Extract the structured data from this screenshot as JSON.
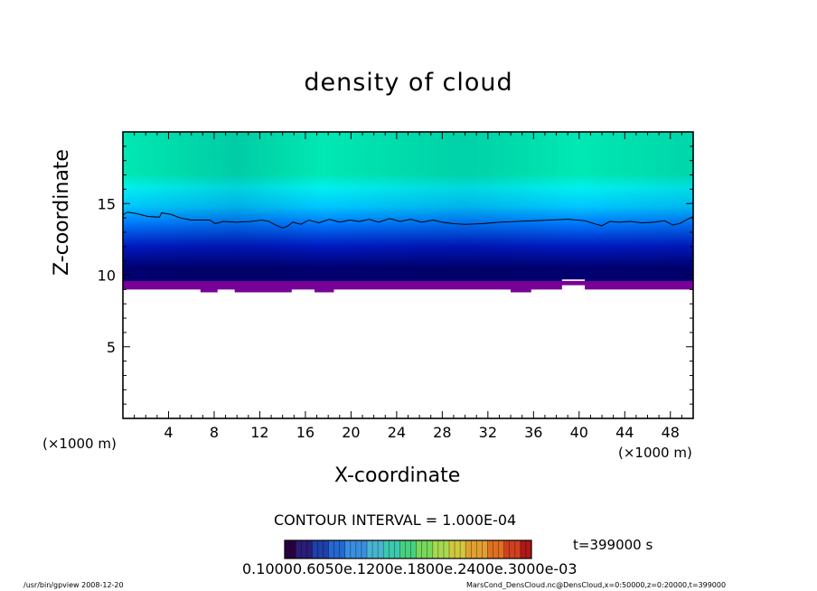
{
  "chart_data": {
    "type": "heatmap",
    "title": "density of cloud",
    "xlabel": "X-coordinate",
    "ylabel": "Z-coordinate",
    "x_unit_left": "(×1000 m)",
    "x_unit_right": "(×1000 m)",
    "xlim": [
      0,
      50
    ],
    "ylim": [
      0,
      20
    ],
    "xticks": [
      "4",
      "8",
      "12",
      "16",
      "20",
      "24",
      "28",
      "32",
      "36",
      "40",
      "44",
      "48"
    ],
    "yticks": [
      "5",
      "10",
      "15"
    ],
    "contour_interval_text": "CONTOUR INTERVAL = 1.000E-04",
    "time_text": "t=399000 s",
    "colorbar_text": "0.10000.6050e.1200e.1800e.2400e.3000e-03",
    "cloud_base_z": [
      [
        0,
        9.0
      ],
      [
        6.8,
        9.0
      ],
      [
        6.8,
        8.8
      ],
      [
        8.3,
        8.8
      ],
      [
        8.3,
        9.0
      ],
      [
        9.8,
        9.0
      ],
      [
        9.8,
        8.8
      ],
      [
        14.8,
        8.8
      ],
      [
        14.8,
        9.0
      ],
      [
        16.8,
        9.0
      ],
      [
        16.8,
        8.8
      ],
      [
        18.5,
        8.8
      ],
      [
        18.5,
        9.0
      ],
      [
        34,
        9.0
      ],
      [
        34,
        8.8
      ],
      [
        35.8,
        8.8
      ],
      [
        35.8,
        9.0
      ],
      [
        38.5,
        9.0
      ],
      [
        38.5,
        9.3
      ],
      [
        40.5,
        9.3
      ],
      [
        40.5,
        9.0
      ],
      [
        50,
        9.0
      ]
    ],
    "contour_z": [
      [
        0,
        14.2
      ],
      [
        0.4,
        14.4
      ],
      [
        1.2,
        14.3
      ],
      [
        2.2,
        14.1
      ],
      [
        3.2,
        14.05
      ],
      [
        3.4,
        14.35
      ],
      [
        4.2,
        14.25
      ],
      [
        5,
        14.0
      ],
      [
        6,
        13.85
      ],
      [
        7.6,
        13.85
      ],
      [
        8.1,
        13.6
      ],
      [
        8.8,
        13.75
      ],
      [
        10,
        13.7
      ],
      [
        11.2,
        13.75
      ],
      [
        12.2,
        13.85
      ],
      [
        12.8,
        13.75
      ],
      [
        13.4,
        13.5
      ],
      [
        14,
        13.3
      ],
      [
        14.4,
        13.4
      ],
      [
        14.9,
        13.7
      ],
      [
        15.6,
        13.55
      ],
      [
        16.3,
        13.85
      ],
      [
        17.2,
        13.65
      ],
      [
        18.1,
        13.9
      ],
      [
        19,
        13.7
      ],
      [
        19.9,
        13.85
      ],
      [
        20.7,
        13.75
      ],
      [
        21.6,
        13.9
      ],
      [
        22.4,
        13.7
      ],
      [
        23.4,
        13.95
      ],
      [
        24.3,
        13.75
      ],
      [
        25.2,
        13.9
      ],
      [
        26.2,
        13.7
      ],
      [
        27.2,
        13.85
      ],
      [
        28,
        13.7
      ],
      [
        29,
        13.6
      ],
      [
        30,
        13.55
      ],
      [
        31.5,
        13.6
      ],
      [
        33,
        13.7
      ],
      [
        34.5,
        13.75
      ],
      [
        36,
        13.8
      ],
      [
        37.5,
        13.85
      ],
      [
        39,
        13.9
      ],
      [
        40.5,
        13.8
      ],
      [
        41.3,
        13.6
      ],
      [
        42,
        13.45
      ],
      [
        42.7,
        13.75
      ],
      [
        43.5,
        13.7
      ],
      [
        44.5,
        13.75
      ],
      [
        45.5,
        13.65
      ],
      [
        46.5,
        13.7
      ],
      [
        47.5,
        13.8
      ],
      [
        48.2,
        13.5
      ],
      [
        48.8,
        13.6
      ],
      [
        49.5,
        13.9
      ],
      [
        50,
        14.1
      ]
    ],
    "colorbar_colors": [
      "#2a0040",
      "#2a1c78",
      "#1e40a8",
      "#2468d0",
      "#3a8ee0",
      "#48b4d0",
      "#3cc8b0",
      "#48d080",
      "#78d85a",
      "#a8d850",
      "#d0c840",
      "#e0a030",
      "#e07020",
      "#d04020",
      "#b01818"
    ],
    "field_colors": {
      "top": "#00e8b4",
      "mid": "#00f0f0",
      "upper_blue": "#0080ff",
      "dark": "#0018c0",
      "base": "#000070",
      "bottom_band": "#780096"
    }
  },
  "footer_left": "/usr/bin/gpview   2008-12-20",
  "footer_right": "MarsCond_DensCloud.nc@DensCloud,x=0:50000,z=0:20000,t=399000"
}
